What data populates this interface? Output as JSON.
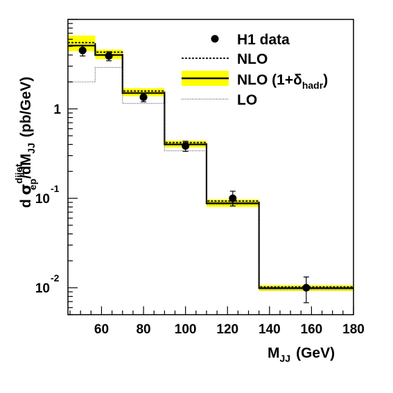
{
  "chart_data": {
    "type": "histogram",
    "xlabel": "M",
    "xlabel_sub": "JJ",
    "xlabel_unit": "(GeV)",
    "ylabel": {
      "prefix": "d ",
      "sigma": "σ",
      "sup": "dijet",
      "sub": "ep",
      "mid": "/dM",
      "sub2": "JJ",
      "unit": "(pb/GeV)"
    },
    "xlim": [
      44,
      180
    ],
    "ylim": [
      0.005,
      10
    ],
    "y_scale": "log",
    "x_ticks": [
      60,
      80,
      100,
      120,
      140,
      160,
      180
    ],
    "x_tick_labels": [
      "60",
      "80",
      "100",
      "120",
      "140",
      "160",
      "180"
    ],
    "y_tick_labels": [
      {
        "value": 1,
        "base": "1",
        "exp": ""
      },
      {
        "value": 0.1,
        "base": "10",
        "exp": "-1"
      },
      {
        "value": 0.01,
        "base": "10",
        "exp": "-2"
      }
    ],
    "bin_edges": [
      44,
      57,
      70,
      90,
      110,
      135,
      180
    ],
    "series": [
      {
        "name": "H1 data",
        "style": "points",
        "x": [
          51,
          63.5,
          80,
          100,
          122.5,
          157.5
        ],
        "y": [
          4.5,
          3.9,
          1.35,
          0.385,
          0.1,
          0.01
        ],
        "err_low": [
          0.6,
          0.45,
          0.15,
          0.05,
          0.018,
          0.0032
        ],
        "err_high": [
          0.6,
          0.45,
          0.15,
          0.05,
          0.02,
          0.0032
        ],
        "xerr": [
          0,
          0,
          0,
          0,
          0,
          2.5
        ]
      },
      {
        "name": "NLO",
        "style": "dashed-histogram",
        "values": [
          5.5,
          4.3,
          1.58,
          0.42,
          0.093,
          0.0102
        ]
      },
      {
        "name": "NLO (1+δhadr)",
        "style": "band-histogram",
        "values": [
          5.1,
          4.0,
          1.5,
          0.4,
          0.088,
          0.0099
        ],
        "band_low": [
          4.4,
          3.6,
          1.38,
          0.37,
          0.08,
          0.0092
        ],
        "band_high": [
          6.6,
          4.6,
          1.7,
          0.44,
          0.097,
          0.0107
        ]
      },
      {
        "name": "LO",
        "style": "dotted-histogram",
        "values": [
          2.0,
          2.9,
          1.15,
          0.34,
          0.085,
          0.0095
        ]
      }
    ],
    "legend": [
      {
        "label": "H1 data",
        "style": "points"
      },
      {
        "label": "NLO",
        "style": "dashed"
      },
      {
        "label": "NLO (1+δ",
        "sub": "hadr",
        "tail": ")",
        "style": "band"
      },
      {
        "label": "LO",
        "style": "dotted"
      }
    ],
    "legend_position": "top-right",
    "grid": false,
    "colors": {
      "band": "#ffff00",
      "line": "#000000"
    }
  }
}
